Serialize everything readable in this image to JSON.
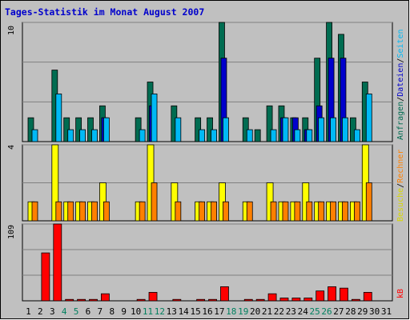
{
  "chart_data": {
    "type": "bar",
    "title": "Tages-Statistik im Monat August 2007",
    "days": [
      "1",
      "2",
      "3",
      "4",
      "5",
      "6",
      "7",
      "8",
      "9",
      "10",
      "11",
      "12",
      "13",
      "14",
      "15",
      "16",
      "17",
      "18",
      "19",
      "20",
      "21",
      "22",
      "23",
      "24",
      "25",
      "26",
      "27",
      "28",
      "29",
      "30",
      "31"
    ],
    "weekend_days": [
      4,
      5,
      11,
      12,
      18,
      19,
      25,
      26
    ],
    "grid": true,
    "panels": {
      "top": {
        "ymax": 10,
        "ymax_label": "10",
        "series": [
          {
            "name": "Anfragen",
            "color": "#006c51",
            "values": [
              2,
              0,
              6,
              2,
              2,
              2,
              3,
              0,
              0,
              2,
              5,
              0,
              3,
              0,
              2,
              2,
              10,
              0,
              2,
              1,
              3,
              3,
              2,
              2,
              7,
              10,
              9,
              2,
              5,
              0,
              0
            ]
          },
          {
            "name": "Dateien",
            "color": "#0000cc",
            "values": [
              0,
              0,
              0,
              0,
              0,
              0,
              2,
              0,
              0,
              0,
              3,
              0,
              0,
              0,
              0,
              0,
              7,
              0,
              0,
              0,
              0,
              2,
              2,
              1,
              3,
              7,
              7,
              0,
              0,
              0,
              0
            ]
          },
          {
            "name": "Seiten",
            "color": "#00b9f5",
            "values": [
              1,
              0,
              4,
              1,
              1,
              1,
              2,
              0,
              0,
              1,
              4,
              0,
              2,
              0,
              1,
              1,
              2,
              0,
              1,
              0,
              1,
              2,
              1,
              1,
              2,
              2,
              2,
              1,
              4,
              0,
              0
            ]
          }
        ]
      },
      "middle": {
        "ymax": 4,
        "ymax_label": "4",
        "series": [
          {
            "name": "Besuche",
            "color": "#ffff00",
            "values": [
              1,
              0,
              4,
              1,
              1,
              1,
              2,
              0,
              0,
              1,
              4,
              0,
              2,
              0,
              1,
              1,
              2,
              0,
              1,
              0,
              2,
              1,
              1,
              2,
              1,
              1,
              1,
              1,
              4,
              0,
              0
            ]
          },
          {
            "name": "Rechner",
            "color": "#ff8000",
            "values": [
              1,
              0,
              1,
              1,
              1,
              1,
              1,
              0,
              0,
              1,
              2,
              0,
              1,
              0,
              1,
              1,
              1,
              0,
              1,
              0,
              1,
              1,
              1,
              1,
              1,
              1,
              1,
              1,
              2,
              0,
              0
            ]
          }
        ]
      },
      "bottom": {
        "ymax": 109,
        "ymax_label": "109",
        "series": [
          {
            "name": "kB",
            "color": "#ff0000",
            "values": [
              0,
              68,
              109,
              2,
              2,
              2,
              10,
              0,
              0,
              2,
              12,
              0,
              2,
              0,
              2,
              2,
              20,
              0,
              2,
              2,
              10,
              4,
              4,
              4,
              14,
              20,
              18,
              2,
              12,
              0,
              0
            ]
          }
        ]
      }
    },
    "legend_right": {
      "top": [
        {
          "text": "Anfragen",
          "color": "#006c51"
        },
        {
          "text": "/",
          "color": "#000000"
        },
        {
          "text": "Dateien",
          "color": "#0000cc"
        },
        {
          "text": "/",
          "color": "#000000"
        },
        {
          "text": "Seiten",
          "color": "#00b9f5"
        }
      ],
      "middle": [
        {
          "text": "Besuche",
          "color": "#d8d800"
        },
        {
          "text": "/",
          "color": "#000000"
        },
        {
          "text": "Rechner",
          "color": "#ff8000"
        }
      ],
      "bottom": [
        {
          "text": "kB",
          "color": "#ff0000"
        }
      ]
    }
  }
}
